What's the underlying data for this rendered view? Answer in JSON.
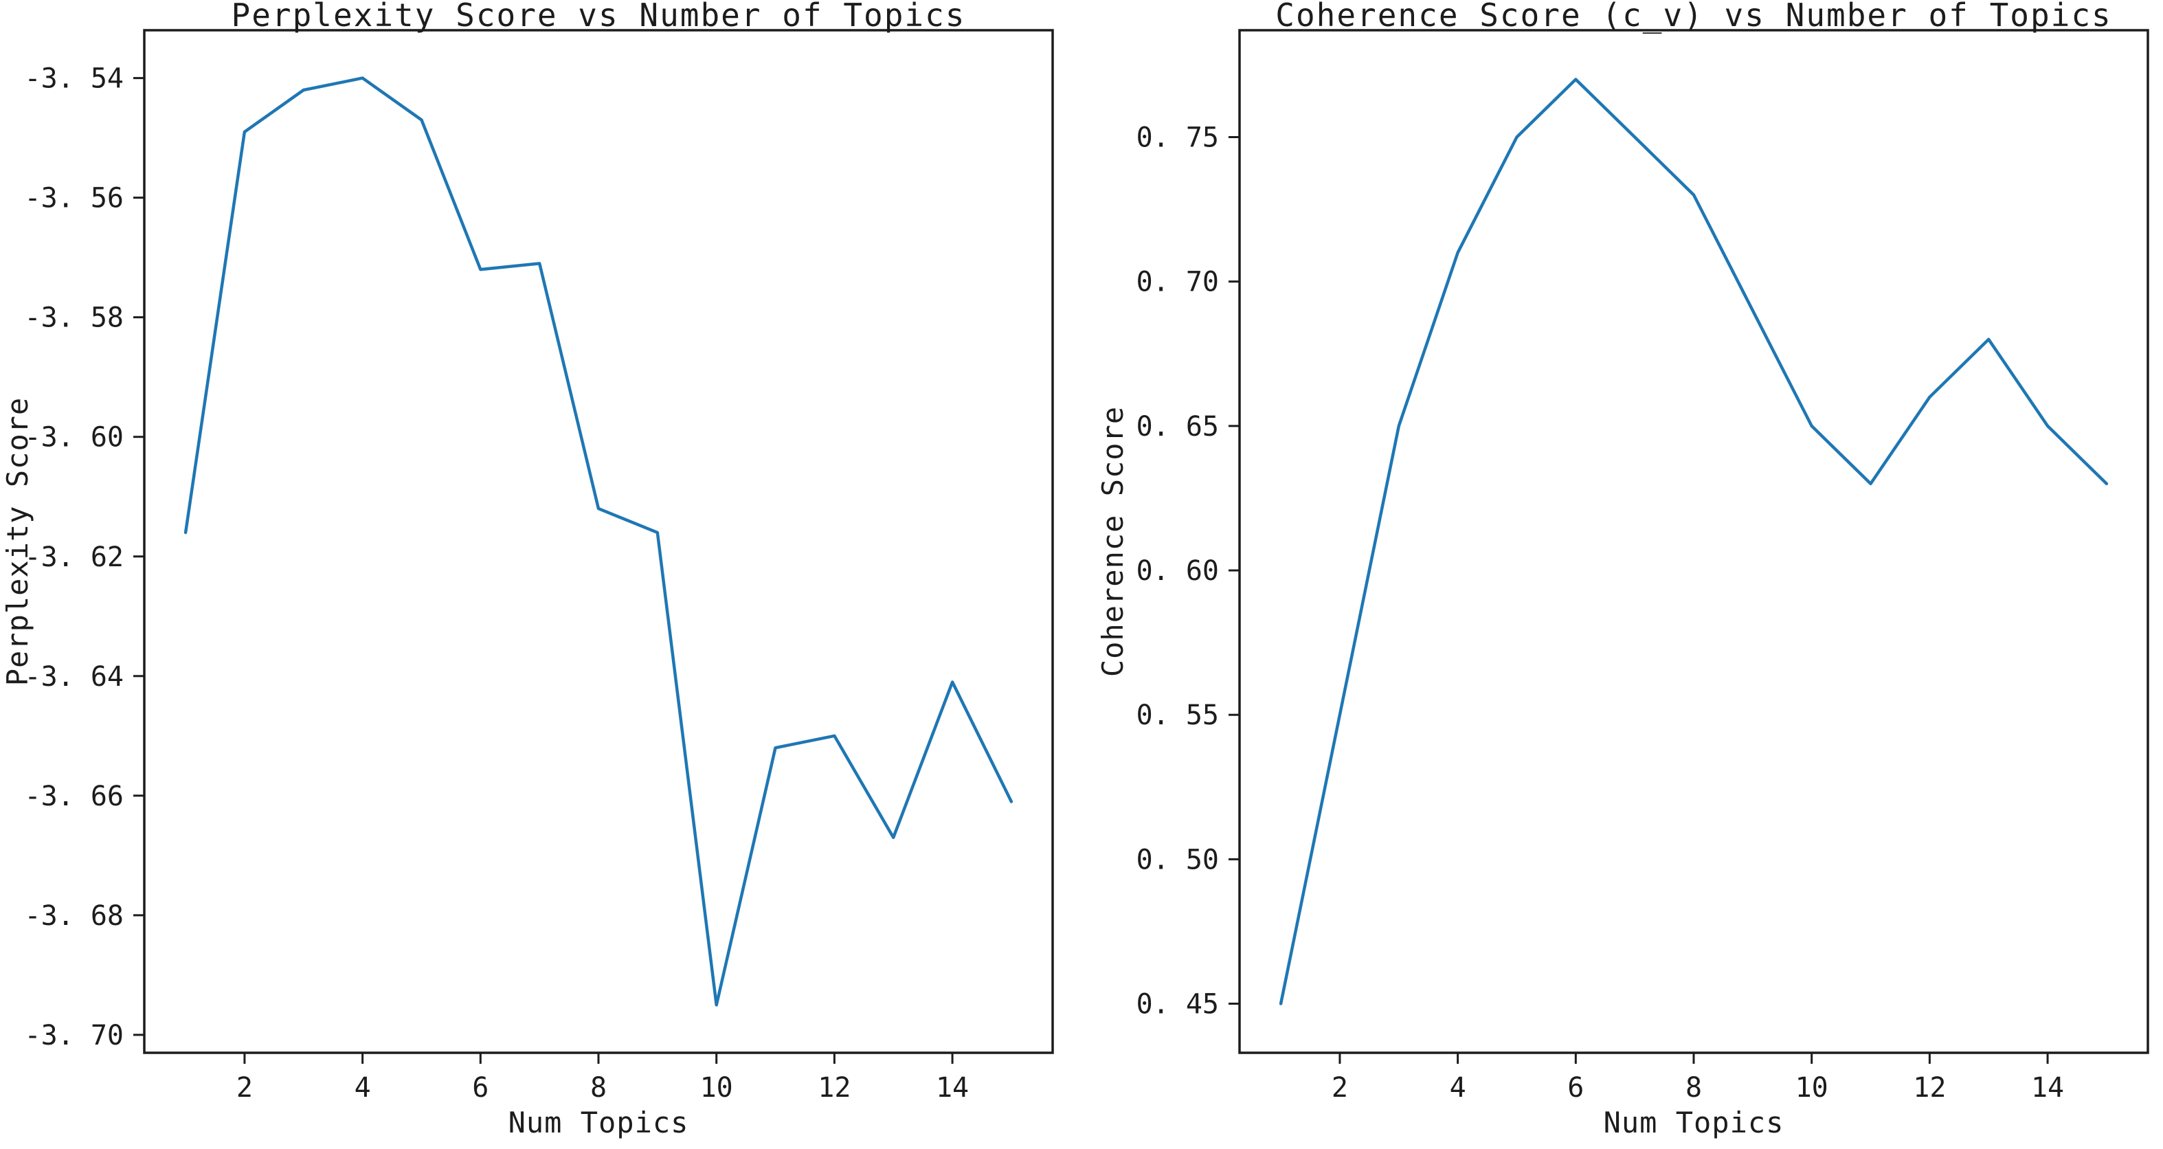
{
  "figure": {
    "background": "#ffffff",
    "axis_color": "#1c1c1c",
    "line_color": "#1f77b4"
  },
  "chart_data": [
    {
      "type": "line",
      "title": "Perplexity Score vs Number of Topics",
      "xlabel": "Num Topics",
      "ylabel": "Perplexity Score",
      "x": [
        1,
        2,
        3,
        4,
        5,
        6,
        7,
        8,
        9,
        10,
        11,
        12,
        13,
        14,
        15
      ],
      "values": [
        -3.616,
        -3.549,
        -3.542,
        -3.54,
        -3.547,
        -3.572,
        -3.571,
        -3.612,
        -3.616,
        -3.695,
        -3.652,
        -3.65,
        -3.667,
        -3.641,
        -3.661
      ],
      "xlim": [
        0.3,
        15.7
      ],
      "ylim": [
        -3.703,
        -3.532
      ],
      "x_ticks": [
        2,
        4,
        6,
        8,
        10,
        12,
        14
      ],
      "x_tick_labels": [
        "2",
        "4",
        "6",
        "8",
        "10",
        "12",
        "14"
      ],
      "y_ticks": [
        -3.54,
        -3.56,
        -3.58,
        -3.6,
        -3.62,
        -3.64,
        -3.66,
        -3.68,
        -3.7
      ],
      "y_tick_labels": [
        "-3. 54",
        "-3. 56",
        "-3. 58",
        "-3. 60",
        "-3. 62",
        "-3. 64",
        "-3. 66",
        "-3. 68",
        "-3. 70"
      ],
      "grid": false,
      "legend": null,
      "line_color": "#1f77b4"
    },
    {
      "type": "line",
      "title": "Coherence Score (c_v) vs Number of Topics",
      "xlabel": "Num Topics",
      "ylabel": "Coherence Score",
      "x": [
        1,
        2,
        3,
        4,
        5,
        6,
        7,
        8,
        9,
        10,
        11,
        12,
        13,
        14,
        15
      ],
      "values": [
        0.45,
        0.55,
        0.65,
        0.71,
        0.75,
        0.77,
        0.75,
        0.73,
        0.69,
        0.65,
        0.63,
        0.66,
        0.68,
        0.65,
        0.63
      ],
      "xlim": [
        0.3,
        15.7
      ],
      "ylim": [
        0.433,
        0.787
      ],
      "x_ticks": [
        2,
        4,
        6,
        8,
        10,
        12,
        14
      ],
      "x_tick_labels": [
        "2",
        "4",
        "6",
        "8",
        "10",
        "12",
        "14"
      ],
      "y_ticks": [
        0.45,
        0.5,
        0.55,
        0.6,
        0.65,
        0.7,
        0.75
      ],
      "y_tick_labels": [
        "0. 45",
        "0. 50",
        "0. 55",
        "0. 60",
        "0. 65",
        "0. 70",
        "0. 75"
      ],
      "grid": false,
      "legend": null,
      "line_color": "#1f77b4"
    }
  ]
}
